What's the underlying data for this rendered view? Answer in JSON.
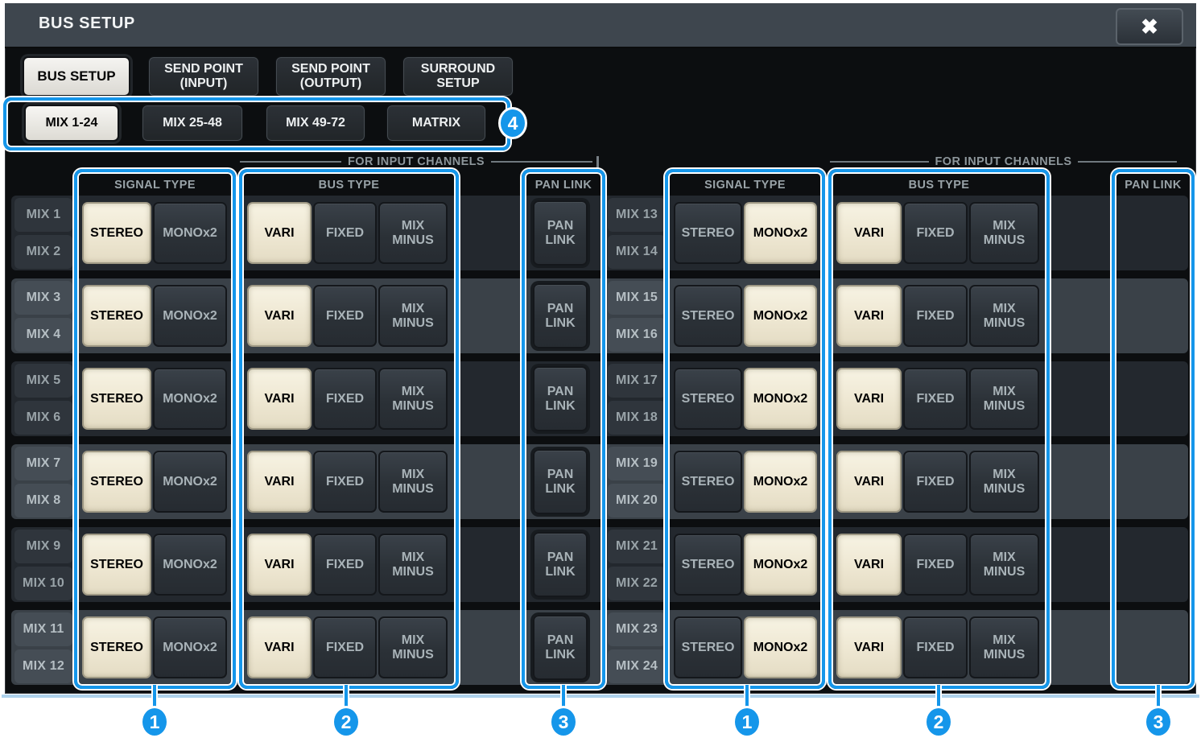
{
  "window": {
    "title": "BUS SETUP",
    "close_glyph": "✖"
  },
  "tabs": [
    {
      "label": "BUS SETUP",
      "active": true
    },
    {
      "label": "SEND POINT\n(INPUT)",
      "active": false
    },
    {
      "label": "SEND POINT\n(OUTPUT)",
      "active": false
    },
    {
      "label": "SURROUND\nSETUP",
      "active": false
    }
  ],
  "subtabs": [
    {
      "label": "MIX 1-24",
      "active": true
    },
    {
      "label": "MIX 25-48",
      "active": false
    },
    {
      "label": "MIX 49-72",
      "active": false
    },
    {
      "label": "MATRIX",
      "active": false
    }
  ],
  "headers": {
    "for_input_channels": "FOR INPUT CHANNELS",
    "signal_type": "SIGNAL TYPE",
    "bus_type": "BUS TYPE",
    "pan_link": "PAN LINK"
  },
  "buttons": {
    "stereo": "STEREO",
    "mono": "MONOx2",
    "vari": "VARI",
    "fixed": "FIXED",
    "mix_minus": "MIX\nMINUS",
    "pan_link": "PAN\nLINK"
  },
  "left_pairs": [
    {
      "channels": [
        "MIX 1",
        "MIX 2"
      ],
      "signal_type": "STEREO",
      "bus_type": "VARI",
      "pan_link": "off"
    },
    {
      "channels": [
        "MIX 3",
        "MIX 4"
      ],
      "signal_type": "STEREO",
      "bus_type": "VARI",
      "pan_link": "off"
    },
    {
      "channels": [
        "MIX 5",
        "MIX 6"
      ],
      "signal_type": "STEREO",
      "bus_type": "VARI",
      "pan_link": "off"
    },
    {
      "channels": [
        "MIX 7",
        "MIX 8"
      ],
      "signal_type": "STEREO",
      "bus_type": "VARI",
      "pan_link": "off"
    },
    {
      "channels": [
        "MIX 9",
        "MIX 10"
      ],
      "signal_type": "STEREO",
      "bus_type": "VARI",
      "pan_link": "off"
    },
    {
      "channels": [
        "MIX 11",
        "MIX 12"
      ],
      "signal_type": "STEREO",
      "bus_type": "VARI",
      "pan_link": "off"
    }
  ],
  "right_pairs": [
    {
      "channels": [
        "MIX 13",
        "MIX 14"
      ],
      "signal_type": "MONOx2",
      "bus_type": "VARI",
      "pan_link": "none"
    },
    {
      "channels": [
        "MIX 15",
        "MIX 16"
      ],
      "signal_type": "MONOx2",
      "bus_type": "VARI",
      "pan_link": "none"
    },
    {
      "channels": [
        "MIX 17",
        "MIX 18"
      ],
      "signal_type": "MONOx2",
      "bus_type": "VARI",
      "pan_link": "none"
    },
    {
      "channels": [
        "MIX 19",
        "MIX 20"
      ],
      "signal_type": "MONOx2",
      "bus_type": "VARI",
      "pan_link": "none"
    },
    {
      "channels": [
        "MIX 21",
        "MIX 22"
      ],
      "signal_type": "MONOx2",
      "bus_type": "VARI",
      "pan_link": "none"
    },
    {
      "channels": [
        "MIX 23",
        "MIX 24"
      ],
      "signal_type": "MONOx2",
      "bus_type": "VARI",
      "pan_link": "none"
    }
  ],
  "callouts": {
    "c1": "1",
    "c2": "2",
    "c3": "3",
    "c4": "4"
  },
  "colors": {
    "accent_blue": "#1596ea",
    "selected_button": "#efe9d6",
    "unselected_button": "#2d343b",
    "stripe_dark": "#23282e",
    "stripe_light": "#3a4148",
    "titlebar": "#3e464e",
    "window_bg": "#0c0e10"
  }
}
